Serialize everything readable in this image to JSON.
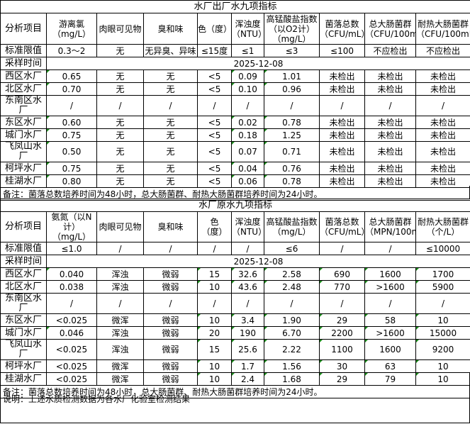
{
  "t1": {
    "title": "水厂出厂水九项指标",
    "headers": [
      "分析项目",
      "游离氯\n（mg/L）",
      "肉眼可见物",
      "臭和味",
      "色（度）",
      "浑浊度\n（NTU）",
      "高锰酸盐指数\n（以O2计）\n（mg/L）",
      "菌落总数\n（CFU/mL）",
      "总大肠菌群\n（CFU/100mL）",
      "耐热大肠菌群\n（CFU/100mL）"
    ],
    "standard": [
      "标准限值",
      "0.3～2",
      "无",
      "无异臭、异味",
      "≤15度",
      "≤1",
      "≤3",
      "≤100",
      "不应检出",
      "不应检出"
    ],
    "sample_label": "采样时间",
    "sample_date": "2025-12-08",
    "rows": [
      [
        "西区水厂",
        "0.65",
        "无",
        "无",
        "<5",
        "0.09",
        "1.01",
        "未检出",
        "未检出",
        "未检出"
      ],
      [
        "北区水厂",
        "0.70",
        "无",
        "无",
        "<5",
        "0.10",
        "0.96",
        "未检出",
        "未检出",
        "未检出"
      ],
      [
        "东南区水厂",
        "/",
        "/",
        "/",
        "/",
        "/",
        "/",
        "/",
        "/",
        "/"
      ],
      [
        "东区水厂",
        "0.60",
        "无",
        "无",
        "<5",
        "0.02",
        "0.78",
        "未检出",
        "未检出",
        "未检出"
      ],
      [
        "城门水厂",
        "0.75",
        "无",
        "无",
        "<5",
        "0.18",
        "1.25",
        "未检出",
        "未检出",
        "未检出"
      ],
      [
        "飞凤山水厂",
        "0.50",
        "无",
        "无",
        "<5",
        "0.07",
        "0.71",
        "未检出",
        "未检出",
        "未检出"
      ],
      [
        "柯坪水厂",
        "0.75",
        "无",
        "无",
        "<5",
        "0.04",
        "0.76",
        "未检出",
        "未检出",
        "未检出"
      ],
      [
        "桂湖水厂",
        "0.80",
        "无",
        "无",
        "<5",
        "0.06",
        "0.78",
        "未检出",
        "未检出",
        "未检出"
      ]
    ],
    "note": "备注：菌落总数培养时间为48小时，总大肠菌群、耐热大肠菌群培养时间为24小时。"
  },
  "t2": {
    "title": "水厂原水九项指标",
    "headers": [
      "分析项目",
      "氨氮（以N计）\n（mg/L）",
      "肉眼可见物",
      "臭和味",
      "色\n（度）",
      "浑浊度\n（NTU）",
      "高锰酸盐指数\n（mg/L）",
      "菌落总数\n（CFU/mL）",
      "总大肠菌群\n（MPN/100mL）",
      "耐热大肠菌群\n（个/L）"
    ],
    "standard": [
      "标准限值",
      "≤1.0",
      "/",
      "/",
      "/",
      "/",
      "≤6",
      "/",
      "/",
      "≤10000"
    ],
    "sample_label": "采样时间",
    "sample_date": "2025-12-08",
    "rows": [
      [
        "西区水厂",
        "0.040",
        "浑浊",
        "微弱",
        "15",
        "32.6",
        "2.58",
        "690",
        "1600",
        "1700"
      ],
      [
        "北区水厂",
        "0.038",
        "浑浊",
        "微弱",
        "10",
        "43.6",
        "2.48",
        "770",
        ">1600",
        "5900"
      ],
      [
        "东南区水厂",
        "/",
        "/",
        "/",
        "/",
        "/",
        "/",
        "/",
        "/",
        "/"
      ],
      [
        "东区水厂",
        "<0.025",
        "微浑",
        "微弱",
        "10",
        "3.4",
        "1.90",
        "29",
        "58",
        "10"
      ],
      [
        "城门水厂",
        "0.046",
        "浑浊",
        "微弱",
        "20",
        "190",
        "6.70",
        "2200",
        ">1600",
        "15000"
      ],
      [
        "飞凤山水厂",
        "<0.025",
        "浑浊",
        "微弱",
        "15",
        "25.6",
        "2.22",
        "1100",
        "1600",
        "9200"
      ],
      [
        "柯坪水厂",
        "<0.025",
        "微浑",
        "微弱",
        "10",
        "1.7",
        "1.56",
        "30",
        "63",
        "10"
      ],
      [
        "桂湖水厂",
        "<0.025",
        "微浑",
        "微弱",
        "10",
        "2.4",
        "1.68",
        "29",
        "79",
        "10"
      ]
    ],
    "note": "备注：菌落总数培养时间为48小时，总大肠菌群、耐热大肠菌群培养时间为24小时。"
  },
  "footer": {
    "explanation": "说明：上述水质检测数据为各水厂化验室检测结果"
  },
  "colors": {
    "text_marker": "#1a8c1a"
  }
}
